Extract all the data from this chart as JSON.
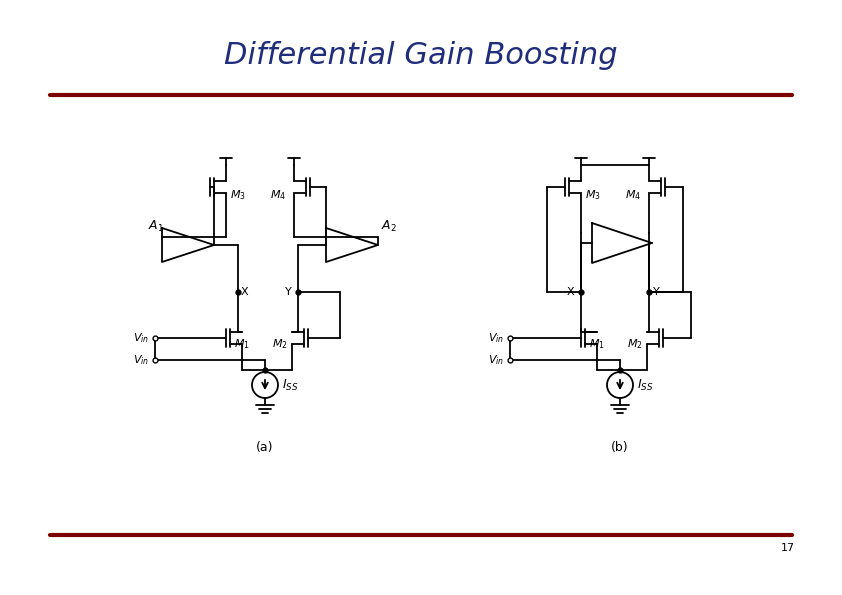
{
  "title": "Differential Gain Boosting",
  "title_color": "#1F2D7B",
  "title_fontsize": 22,
  "bg_color": "#FFFFFF",
  "line_color": "#000000",
  "dark_red": "#7B0000",
  "page_number": "17",
  "label_a": "(a)",
  "label_b": "(b)"
}
